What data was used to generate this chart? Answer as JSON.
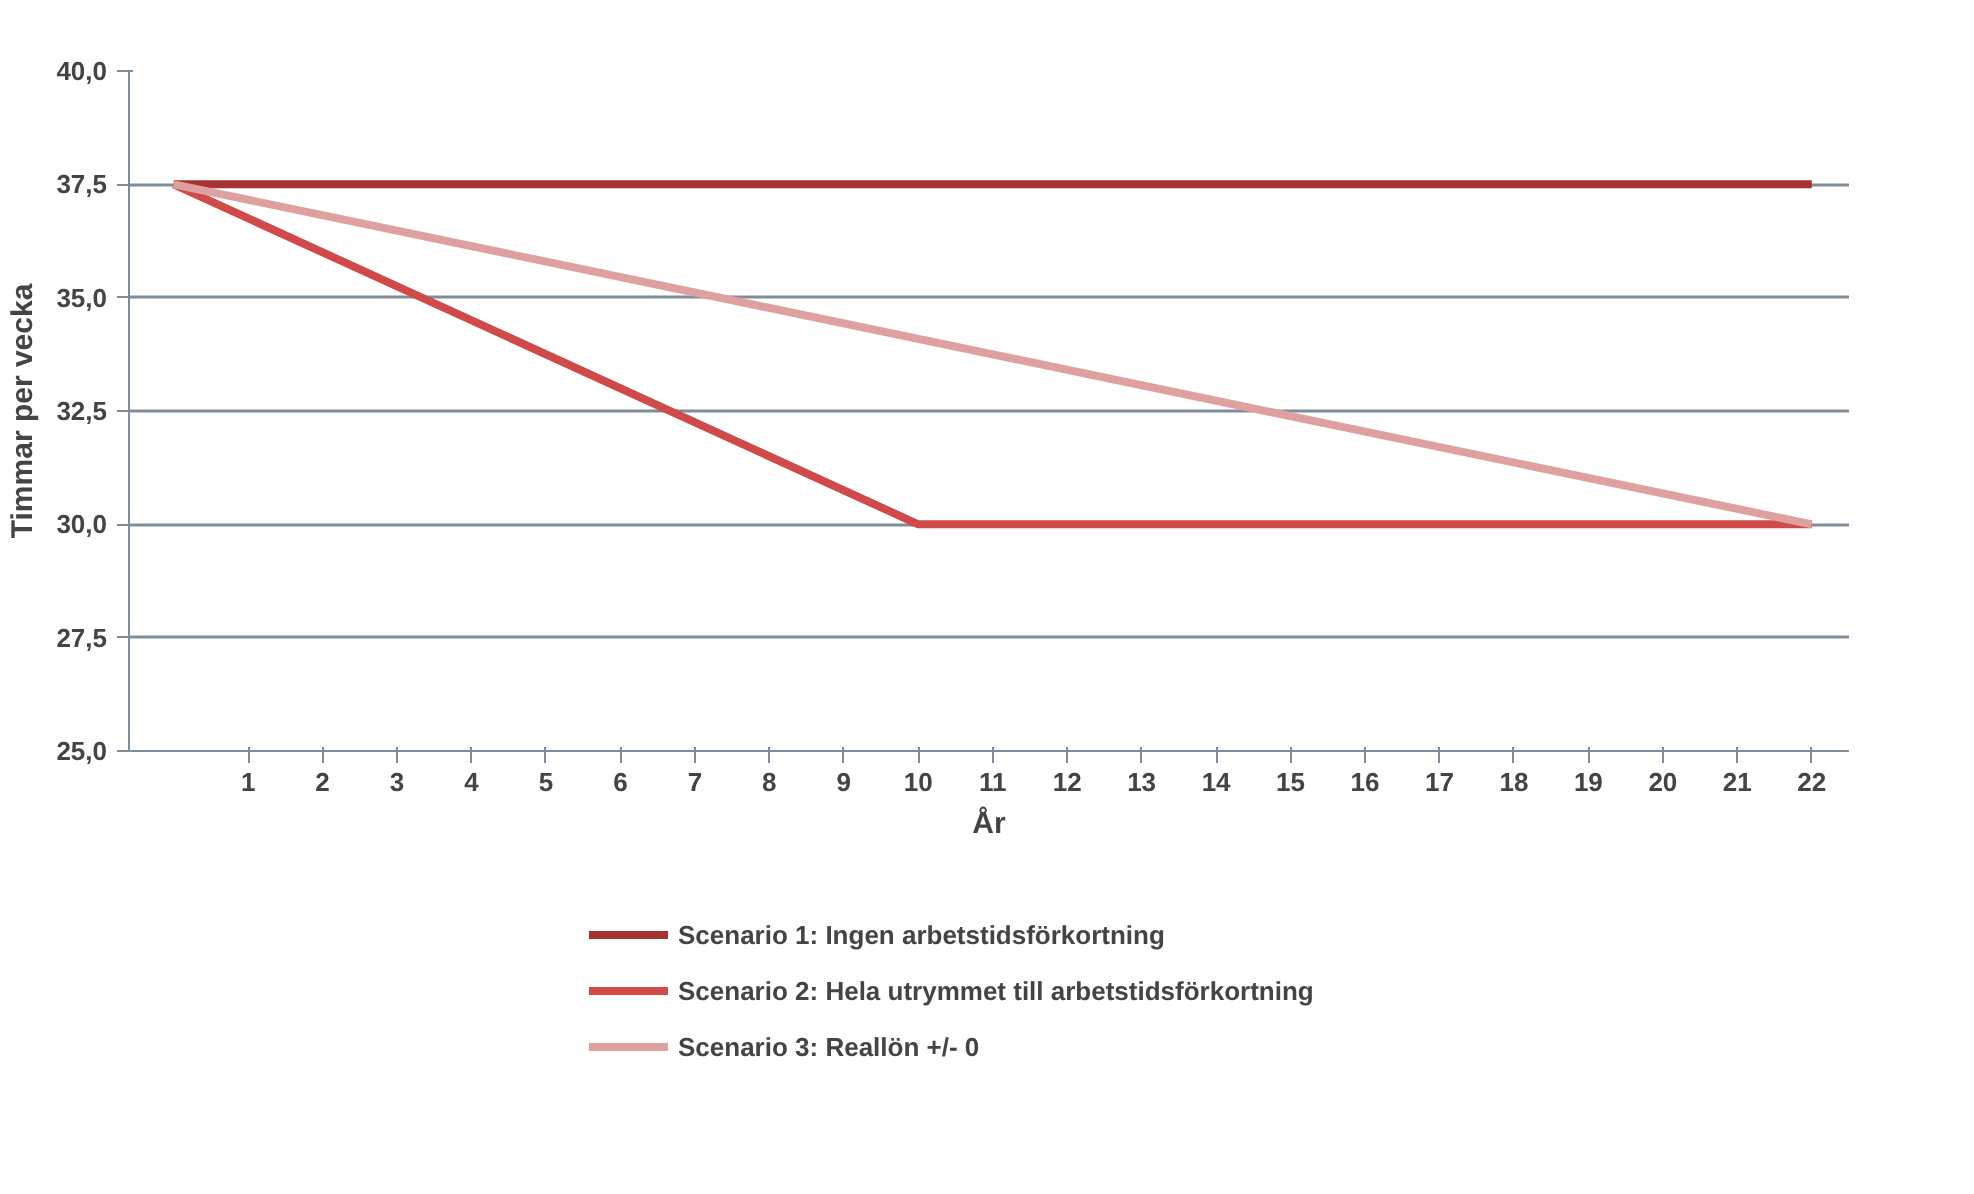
{
  "chart_data": {
    "type": "line",
    "xlabel": "År",
    "ylabel": "Timmar per vecka",
    "xlim": [
      -0.6,
      22.5
    ],
    "xticks": [
      1,
      2,
      3,
      4,
      5,
      6,
      7,
      8,
      9,
      10,
      11,
      12,
      13,
      14,
      15,
      16,
      17,
      18,
      19,
      20,
      21,
      22
    ],
    "ylim": [
      25,
      40
    ],
    "yticks": [
      {
        "value": 25,
        "label": "25,0"
      },
      {
        "value": 27.5,
        "label": "27,5"
      },
      {
        "value": 30,
        "label": "30,0"
      },
      {
        "value": 32.5,
        "label": "32,5"
      },
      {
        "value": 35,
        "label": "35,0"
      },
      {
        "value": 37.5,
        "label": "37,5"
      },
      {
        "value": 40,
        "label": "40,0"
      }
    ],
    "grid": "y",
    "legend": "bottom",
    "marker": "none",
    "line_style": "solid",
    "series": [
      {
        "name": "Scenario 1: Ingen arbetstidsförkortning",
        "color": "#a83232",
        "x": [
          0,
          22
        ],
        "values": [
          37.5,
          37.5
        ]
      },
      {
        "name": "Scenario 2: Hela utrymmet till arbetstidsförkortning",
        "color": "#d04a4a",
        "x": [
          0,
          10,
          22
        ],
        "values": [
          37.5,
          30,
          30
        ]
      },
      {
        "name": "Scenario 3: Reallön +/- 0",
        "color": "#dfa0a0",
        "x": [
          0,
          22
        ],
        "values": [
          37.5,
          30
        ]
      }
    ]
  }
}
